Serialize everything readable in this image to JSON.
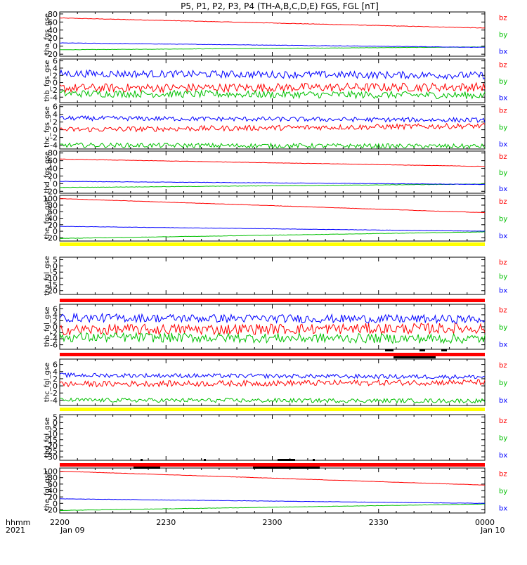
{
  "title": "P5, P1, P2, P3, P4 (TH-A,B,C,D,E) FGS, FGL [nT]",
  "colors": {
    "bz": "#ff0000",
    "by": "#00c000",
    "bx": "#0000ff",
    "yellow": "#ffff00",
    "red": "#ff0000",
    "black": "#000000"
  },
  "x_axis": {
    "ticks": [
      "2200",
      "2230",
      "2300",
      "2330",
      "0000"
    ],
    "date_start": "Jan 09",
    "date_end": "Jan 10",
    "row_label_1": "hhmm",
    "row_label_2": "2021"
  },
  "chart_data": [
    {
      "type": "line",
      "panel": "tha_fgs_gse",
      "ylabel": "tha_fgs_gse",
      "ylim": [
        -25,
        85
      ],
      "yticks": [
        80,
        60,
        40,
        20,
        0,
        -20
      ],
      "series": [
        {
          "name": "bz",
          "start": 70,
          "end": 45,
          "noise": 0.6
        },
        {
          "name": "by",
          "start": -9,
          "end": -2,
          "noise": 0.4
        },
        {
          "name": "bx",
          "start": 8,
          "end": -3,
          "noise": 0.5
        }
      ]
    },
    {
      "type": "line",
      "panel": "thb_fgs_gse",
      "ylabel": "thb_fgs_gse",
      "ylim": [
        -5.5,
        6.5
      ],
      "yticks": [
        6,
        4,
        2,
        0,
        -2,
        -4
      ],
      "series": [
        {
          "name": "bz",
          "start": -1.5,
          "end": -1.2,
          "noise": 1.2
        },
        {
          "name": "by",
          "start": -3,
          "end": -3.5,
          "noise": 1.0
        },
        {
          "name": "bx",
          "start": 2.5,
          "end": 2,
          "noise": 1.0
        }
      ]
    },
    {
      "type": "line",
      "panel": "thc_fgs_gse",
      "ylabel": "thc_fgs_gse",
      "ylim": [
        -5,
        6.5
      ],
      "yticks": [
        6,
        4,
        2,
        0,
        -2,
        -4
      ],
      "series": [
        {
          "name": "bz",
          "start": 0,
          "end": 1,
          "noise": 0.7
        },
        {
          "name": "by",
          "start": -4,
          "end": -4.3,
          "noise": 0.6
        },
        {
          "name": "bx",
          "start": 3,
          "end": 2.5,
          "noise": 0.6
        }
      ]
    },
    {
      "type": "line",
      "panel": "thd_fgs_gse",
      "ylabel": "thd_fgs_gse",
      "ylim": [
        -25,
        85
      ],
      "yticks": [
        80,
        60,
        40,
        20,
        0,
        -20
      ],
      "series": [
        {
          "name": "bz",
          "start": 64,
          "end": 45,
          "noise": 0.5
        },
        {
          "name": "by",
          "start": -10,
          "end": -1,
          "noise": 0.5
        },
        {
          "name": "bx",
          "start": 6,
          "end": -2,
          "noise": 0.5
        }
      ]
    },
    {
      "type": "line",
      "panel": "the_fgs_gse",
      "ylabel": "the_fgs_gse",
      "ylim": [
        -30,
        110
      ],
      "yticks": [
        100,
        80,
        60,
        40,
        20,
        0,
        -20
      ],
      "series": [
        {
          "name": "bz",
          "start": 100,
          "end": 57,
          "noise": 0.5
        },
        {
          "name": "by",
          "start": -22,
          "end": -2,
          "noise": 0.5
        },
        {
          "name": "bx",
          "start": 15,
          "end": 0,
          "noise": 0.5
        }
      ]
    },
    {
      "type": "line",
      "panel": "tha_fgl_gse",
      "ylabel": "tha_fgl_gse",
      "ylim": [
        -23,
        7
      ],
      "yticks": [
        5,
        0,
        -5,
        -10,
        -15,
        -20
      ],
      "series": [
        {
          "name": "bz",
          "start": null,
          "end": null,
          "noise": 0
        },
        {
          "name": "by",
          "start": null,
          "end": null,
          "noise": 0
        },
        {
          "name": "bx",
          "start": null,
          "end": null,
          "noise": 0
        }
      ]
    },
    {
      "type": "line",
      "panel": "thb_fgl_gse",
      "ylabel": "thb_fgl_gse",
      "ylim": [
        -7.5,
        7.5
      ],
      "yticks": [
        6,
        4,
        2,
        0,
        -2,
        -4,
        -6
      ],
      "series": [
        {
          "name": "bz",
          "start": -1,
          "end": -0.5,
          "noise": 1.8
        },
        {
          "name": "by",
          "start": -3.5,
          "end": -4,
          "noise": 1.6
        },
        {
          "name": "bx",
          "start": 3,
          "end": 2.5,
          "noise": 1.4
        }
      ]
    },
    {
      "type": "line",
      "panel": "thc_fgl_gse",
      "ylabel": "thc_fgl_gse",
      "ylim": [
        -5.5,
        7.5
      ],
      "yticks": [
        6,
        4,
        2,
        0,
        -2,
        -4
      ],
      "series": [
        {
          "name": "bz",
          "start": 0.5,
          "end": 1,
          "noise": 0.8
        },
        {
          "name": "by",
          "start": -4,
          "end": -4.2,
          "noise": 0.6
        },
        {
          "name": "bx",
          "start": 3,
          "end": 2.5,
          "noise": 0.6
        }
      ]
    },
    {
      "type": "line",
      "panel": "thd_fgl_gse",
      "ylabel": "thd_fgl_gse",
      "ylim": [
        -33,
        7
      ],
      "yticks": [
        5,
        0,
        -5,
        -10,
        -15,
        -20,
        -25,
        -30
      ],
      "series": [
        {
          "name": "bz",
          "start": null,
          "end": null,
          "noise": 0
        },
        {
          "name": "by",
          "start": null,
          "end": null,
          "noise": 0
        },
        {
          "name": "bx",
          "start": null,
          "end": null,
          "noise": 0
        }
      ]
    },
    {
      "type": "line",
      "panel": "the_fgl_gse",
      "ylabel": "the_fgl_gse",
      "ylim": [
        -30,
        110
      ],
      "yticks": [
        100,
        80,
        60,
        40,
        20,
        0,
        -20
      ],
      "series": [
        {
          "name": "bz",
          "start": 100,
          "end": 57,
          "noise": 0.5
        },
        {
          "name": "by",
          "start": -22,
          "end": -2,
          "noise": 0.5
        },
        {
          "name": "bx",
          "start": 14,
          "end": 0,
          "noise": 0.5
        }
      ]
    }
  ]
}
